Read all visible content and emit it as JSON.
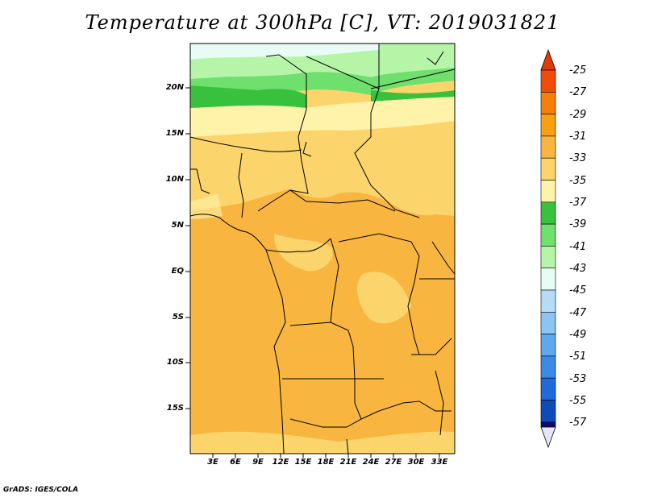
{
  "title": "Temperature at 300hPa [C], VT: 2019031821",
  "credit": "GrADS: IGES/COLA",
  "map": {
    "lat_labels": [
      "20N",
      "15N",
      "10N",
      "5N",
      "EQ",
      "5S",
      "10S",
      "15S"
    ],
    "lon_labels": [
      "3E",
      "6E",
      "9E",
      "12E",
      "15E",
      "18E",
      "21E",
      "24E",
      "27E",
      "30E",
      "33E"
    ]
  },
  "colorbar": {
    "labels": [
      "-25",
      "-27",
      "-29",
      "-31",
      "-33",
      "-35",
      "-37",
      "-39",
      "-41",
      "-43",
      "-45",
      "-47",
      "-49",
      "-51",
      "-53",
      "-55",
      "-57"
    ],
    "colors": [
      "#f04b08",
      "#f57f0a",
      "#f9a00f",
      "#f8b640",
      "#fbd56b",
      "#fff3aa",
      "#38c13c",
      "#6fdf6e",
      "#b6f4a8",
      "#e8fbf4",
      "#b5dcf7",
      "#8cc4f2",
      "#5ea9ee",
      "#3a8ae6",
      "#1f6ad8",
      "#0f4bb8",
      "#0a0a72"
    ],
    "top_arrow_color": "#e13a06",
    "bottom_arrow_color": "#e6e6f9"
  }
}
